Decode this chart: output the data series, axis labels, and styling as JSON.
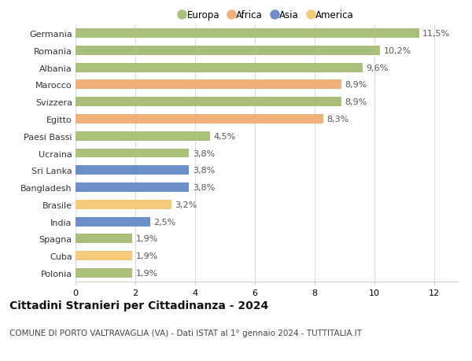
{
  "categories": [
    "Polonia",
    "Cuba",
    "Spagna",
    "India",
    "Brasile",
    "Bangladesh",
    "Sri Lanka",
    "Ucraina",
    "Paesi Bassi",
    "Egitto",
    "Svizzera",
    "Marocco",
    "Albania",
    "Romania",
    "Germania"
  ],
  "values": [
    1.9,
    1.9,
    1.9,
    2.5,
    3.2,
    3.8,
    3.8,
    3.8,
    4.5,
    8.3,
    8.9,
    8.9,
    9.6,
    10.2,
    11.5
  ],
  "labels": [
    "1,9%",
    "1,9%",
    "1,9%",
    "2,5%",
    "3,2%",
    "3,8%",
    "3,8%",
    "3,8%",
    "4,5%",
    "8,3%",
    "8,9%",
    "8,9%",
    "9,6%",
    "10,2%",
    "11,5%"
  ],
  "colors": [
    "#a8c07a",
    "#f5c97a",
    "#a8c07a",
    "#6d8fc7",
    "#f5c97a",
    "#6d8fc7",
    "#6d8fc7",
    "#a8c07a",
    "#a8c07a",
    "#f0b07a",
    "#a8c07a",
    "#f0b07a",
    "#a8c07a",
    "#a8c07a",
    "#a8c07a"
  ],
  "legend_labels": [
    "Europa",
    "Africa",
    "Asia",
    "America"
  ],
  "legend_colors": [
    "#a8c07a",
    "#f0b07a",
    "#6d8fc7",
    "#f5c97a"
  ],
  "title": "Cittadini Stranieri per Cittadinanza - 2024",
  "subtitle": "COMUNE DI PORTO VALTRAVAGLIA (VA) - Dati ISTAT al 1° gennaio 2024 - TUTTITALIA.IT",
  "xlim": [
    0,
    12.8
  ],
  "xticks": [
    0,
    2,
    4,
    6,
    8,
    10,
    12
  ],
  "bg_color": "#ffffff",
  "grid_color": "#dddddd",
  "bar_height": 0.55,
  "title_fontsize": 10,
  "subtitle_fontsize": 7.5,
  "label_fontsize": 8,
  "tick_fontsize": 8,
  "legend_fontsize": 8.5
}
